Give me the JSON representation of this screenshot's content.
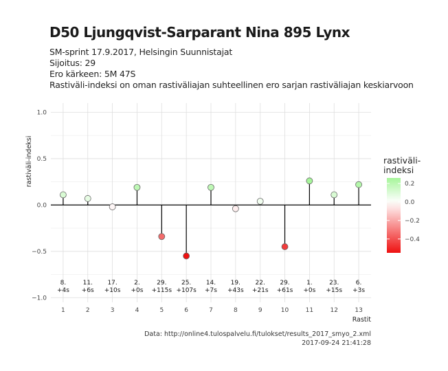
{
  "chart_data": {
    "type": "scatter",
    "title": "D50 Ljungqvist-Sarparant Nina 895 Lynx",
    "subtitle": [
      "SM-sprint 17.9.2017, Helsingin Suunnistajat",
      "Sijoitus: 29",
      "Ero kärkeen: 5M 47S",
      "Rastiväli-indeksi on oman rastiväliajan suhteellinen ero sarjan rastiväliajan keskiarvoon"
    ],
    "xlabel": "Rastit",
    "ylabel": "rastiväli-indeksi",
    "ylim": [
      -1.05,
      1.1
    ],
    "yticks": [
      -1.0,
      -0.5,
      0.0,
      0.5,
      1.0
    ],
    "ytick_labels": [
      "−1.0",
      "−0.5",
      "0.0",
      "0.5",
      "1.0"
    ],
    "xlim": [
      0.5,
      13.5
    ],
    "x": [
      1,
      2,
      3,
      4,
      5,
      6,
      7,
      8,
      9,
      10,
      11,
      12,
      13
    ],
    "values": [
      0.11,
      0.07,
      -0.02,
      0.19,
      -0.34,
      -0.55,
      0.19,
      -0.04,
      0.04,
      -0.45,
      0.26,
      0.11,
      0.22
    ],
    "labels_top": [
      "8.",
      "11.",
      "17.",
      "2.",
      "29.",
      "25.",
      "14.",
      "19.",
      "22.",
      "29.",
      "1.",
      "23.",
      "6."
    ],
    "labels_bottom": [
      "+4s",
      "+6s",
      "+10s",
      "+0s",
      "+115s",
      "+107s",
      "+7s",
      "+43s",
      "+21s",
      "+61s",
      "+0s",
      "+15s",
      "+3s"
    ],
    "grid": true,
    "legend": {
      "title": [
        "rastiväli-",
        "indeksi"
      ],
      "position": "right",
      "ticks": [
        0.2,
        0.0,
        -0.2,
        -0.4
      ],
      "tick_labels": [
        "0.2",
        "0.0",
        "−0.2",
        "−0.4"
      ],
      "range": [
        -0.55,
        0.26
      ],
      "color_low": "#ee1111",
      "color_mid": "#ffffff",
      "color_high": "#a6f59a"
    }
  },
  "caption": {
    "source": "Data: http://online4.tulospalvelu.fi/tulokset/results_2017_smyo_2.xml",
    "timestamp": "2017-09-24 21:41:28"
  }
}
